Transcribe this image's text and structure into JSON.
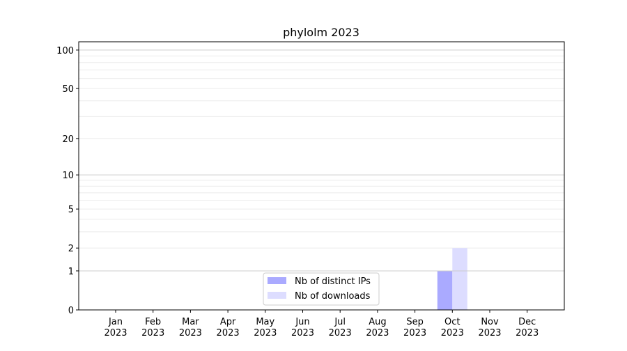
{
  "chart_data": {
    "type": "bar",
    "title": "phylolm 2023",
    "xlabel": "",
    "ylabel": "",
    "categories": [
      "Jan\n2023",
      "Feb\n2023",
      "Mar\n2023",
      "Apr\n2023",
      "May\n2023",
      "Jun\n2023",
      "Jul\n2023",
      "Aug\n2023",
      "Sep\n2023",
      "Oct\n2023",
      "Nov\n2023",
      "Dec\n2023"
    ],
    "series": [
      {
        "name": "Nb of distinct IPs",
        "color": "#aaaaff",
        "values": [
          0,
          0,
          0,
          0,
          0,
          0,
          0,
          0,
          0,
          1,
          0,
          0
        ]
      },
      {
        "name": "Nb of downloads",
        "color": "#ddddff",
        "values": [
          0,
          0,
          0,
          0,
          0,
          0,
          0,
          0,
          0,
          2,
          0,
          0
        ]
      }
    ],
    "yscale": "log10(1+y)",
    "ylim": [
      0,
      116
    ],
    "yticks": [
      0,
      1,
      2,
      5,
      10,
      20,
      50,
      100
    ],
    "grid": true,
    "legend": "lower-center"
  }
}
